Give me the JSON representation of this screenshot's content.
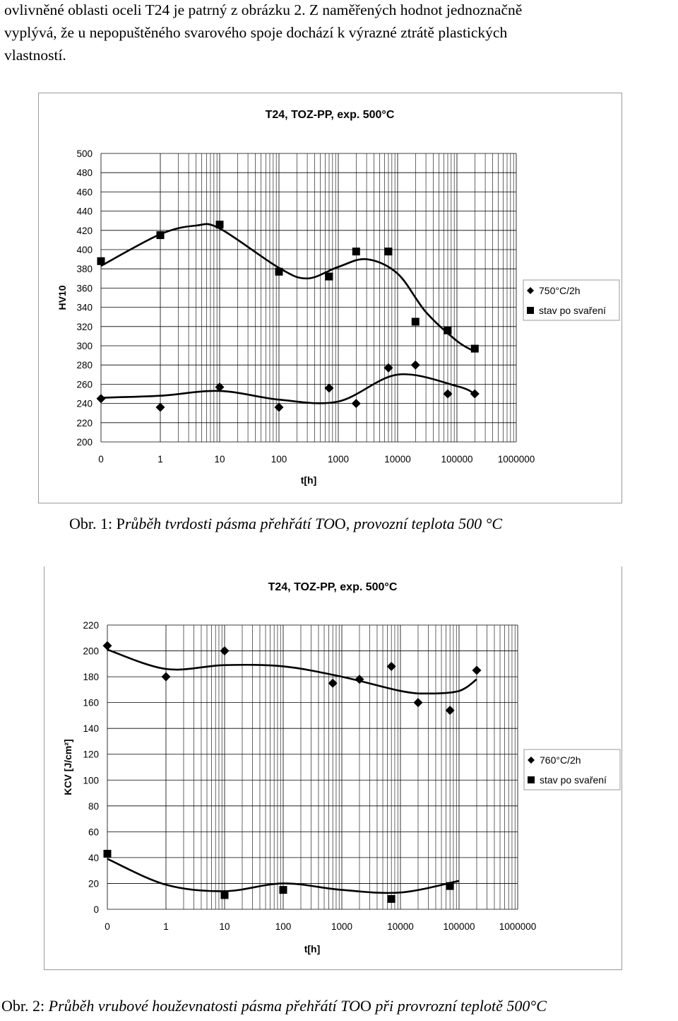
{
  "intro": {
    "line1": "ovlivněné oblasti oceli T24 je patrný z obrázku 2. Z naměřených hodnot jednoznačně",
    "line2": "vyplývá, že u nepopuštěného svarového spoje dochází k výrazné ztrátě plastických",
    "line3": "vlastností."
  },
  "captions": [
    {
      "prefix": "Obr. 1: P",
      "italic": "růběh tvrdosti pásma přehřátí TO",
      "mid": "O, ",
      "italic2": "provozní teplota 500 °C",
      "suffix": ""
    },
    {
      "prefix": "Obr. 2: ",
      "italic": "Průběh vrubové houževnatosti pásma přehřátí TO",
      "mid": "O ",
      "italic2": "při provrozní teplotě 500°C",
      "suffix": ""
    }
  ],
  "chart_data": [
    {
      "type": "scatter",
      "title": "T24, TOZ-PP, exp. 500°C",
      "xlabel": "t[h]",
      "ylabel": "HV10",
      "xticks": [
        "0",
        "1",
        "10",
        "100",
        "1000",
        "10000",
        "100000",
        "1000000"
      ],
      "ylim": [
        200,
        500
      ],
      "ystep": 20,
      "grid": true,
      "legend_position": "right",
      "series": [
        {
          "name": "750°C/2h",
          "marker": "diamond",
          "x": [
            0,
            1,
            10,
            100,
            700,
            2000,
            7000,
            20000,
            70000,
            200000
          ],
          "y": [
            245,
            236,
            257,
            236,
            256,
            240,
            277,
            280,
            250,
            250
          ]
        },
        {
          "name": "stav po svaření",
          "marker": "square",
          "x": [
            0,
            1,
            10,
            100,
            700,
            2000,
            7000,
            20000,
            70000,
            200000
          ],
          "y": [
            388,
            415,
            426,
            377,
            372,
            398,
            398,
            325,
            316,
            297
          ]
        }
      ],
      "trendlines": [
        {
          "x": [
            0,
            1,
            10,
            100,
            1000,
            10000,
            100000,
            200000
          ],
          "y": [
            246,
            248,
            253,
            244,
            242,
            270,
            258,
            250
          ]
        },
        {
          "x": [
            0,
            1,
            4,
            10,
            100,
            300,
            1000,
            3000,
            10000,
            30000,
            100000,
            200000
          ],
          "y": [
            383,
            416,
            425,
            422,
            381,
            370,
            382,
            390,
            375,
            335,
            305,
            294
          ]
        }
      ]
    },
    {
      "type": "scatter",
      "title": "T24, TOZ-PP, exp. 500°C",
      "xlabel": "t[h]",
      "ylabel": "KCV [J/cm²]",
      "xticks": [
        "0",
        "1",
        "10",
        "100",
        "1000",
        "10000",
        "100000",
        "1000000"
      ],
      "ylim": [
        0,
        220
      ],
      "ystep": 20,
      "grid": true,
      "legend_position": "right",
      "series": [
        {
          "name": "760°C/2h",
          "marker": "diamond",
          "x": [
            0,
            1,
            10,
            700,
            2000,
            7000,
            20000,
            70000,
            200000
          ],
          "y": [
            204,
            180,
            200,
            175,
            178,
            188,
            160,
            154,
            185
          ]
        },
        {
          "name": "stav po svaření",
          "marker": "square",
          "x": [
            0,
            10,
            100,
            7000,
            70000
          ],
          "y": [
            43,
            11,
            15,
            8,
            18
          ]
        }
      ],
      "trendlines": [
        {
          "x": [
            0,
            1,
            10,
            100,
            1000,
            10000,
            30000,
            100000,
            200000
          ],
          "y": [
            201,
            186,
            189,
            188,
            180,
            169,
            167,
            169,
            178
          ]
        },
        {
          "x": [
            0,
            1,
            10,
            100,
            1000,
            10000,
            100000
          ],
          "y": [
            39,
            19,
            14,
            20,
            15,
            13,
            22
          ]
        }
      ]
    }
  ]
}
